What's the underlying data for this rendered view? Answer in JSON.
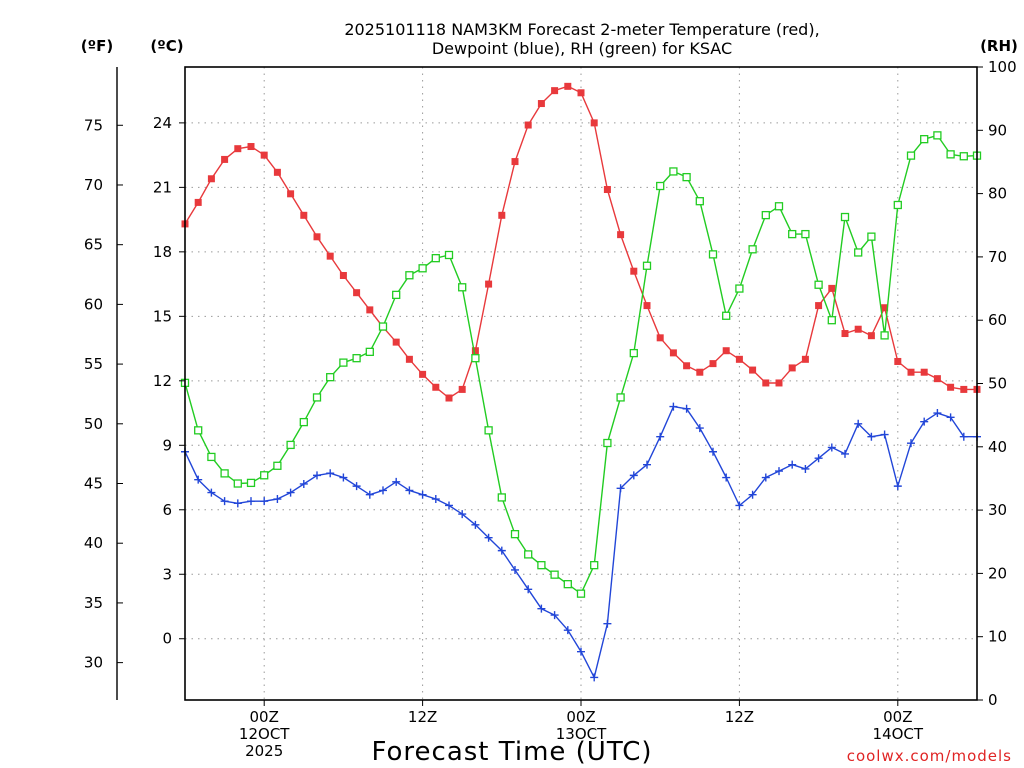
{
  "chart_data": {
    "type": "line",
    "title_lines": [
      "2025101118 NAM3KM Forecast 2-meter Temperature (red),",
      "Dewpoint (blue), RH (green) for KSAC"
    ],
    "xlabel": "Forecast Time (UTC)",
    "credit": "coolwx.com/models",
    "units": {
      "fahrenheit": "(ºF)",
      "celsius": "(ºC)",
      "rh": "(RH)"
    },
    "x_range": [
      1,
      61
    ],
    "x_ticks": [
      {
        "hour": 7,
        "lines": [
          "00Z",
          "12OCT",
          "2025"
        ]
      },
      {
        "hour": 19,
        "lines": [
          "12Z"
        ]
      },
      {
        "hour": 31,
        "lines": [
          "00Z",
          "13OCT"
        ]
      },
      {
        "hour": 43,
        "lines": [
          "12Z"
        ]
      },
      {
        "hour": 55,
        "lines": [
          "00Z",
          "14OCT"
        ]
      }
    ],
    "celsius_axis": {
      "range": [
        -2.85,
        26.6
      ],
      "ticks": [
        "0",
        "3",
        "6",
        "9",
        "12",
        "15",
        "18",
        "21",
        "24"
      ]
    },
    "fahrenheit_axis": {
      "ticks": [
        "30",
        "35",
        "40",
        "45",
        "50",
        "55",
        "60",
        "65",
        "70",
        "75"
      ]
    },
    "rh_axis": {
      "range": [
        0,
        100
      ],
      "ticks": [
        "0",
        "10",
        "20",
        "30",
        "40",
        "50",
        "60",
        "70",
        "80",
        "90",
        "100"
      ]
    },
    "series": [
      {
        "name": "2-meter Temperature",
        "unit": "C",
        "color": "#e8393c",
        "marker": "filled-square",
        "x": [
          1,
          2,
          3,
          4,
          5,
          6,
          7,
          8,
          9,
          10,
          11,
          12,
          13,
          14,
          15,
          16,
          17,
          18,
          19,
          20,
          21,
          22,
          23,
          24,
          25,
          26,
          27,
          28,
          29,
          30,
          31,
          32,
          33,
          34,
          35,
          36,
          37,
          38,
          39,
          40,
          41,
          42,
          43,
          44,
          45,
          46,
          47,
          48,
          49,
          50,
          51,
          52,
          53,
          54,
          55,
          56,
          57,
          58,
          59,
          60,
          61
        ],
        "values": [
          19.3,
          20.3,
          21.4,
          22.3,
          22.8,
          22.9,
          22.5,
          21.7,
          20.7,
          19.7,
          18.7,
          17.8,
          16.9,
          16.1,
          15.3,
          14.5,
          13.8,
          13.0,
          12.3,
          11.7,
          11.2,
          11.6,
          13.4,
          16.5,
          19.7,
          22.2,
          23.9,
          24.9,
          25.5,
          25.7,
          25.4,
          24.0,
          20.9,
          18.8,
          17.1,
          15.5,
          14.0,
          13.3,
          12.7,
          12.4,
          12.8,
          13.4,
          13.0,
          12.5,
          11.9,
          11.9,
          12.6,
          13.0,
          15.5,
          16.3,
          14.2,
          14.4,
          14.1,
          15.4,
          12.9,
          12.4,
          12.4,
          12.1,
          11.7,
          11.6,
          11.6
        ]
      },
      {
        "name": "Dewpoint",
        "unit": "C",
        "color": "#2246d8",
        "marker": "plus",
        "x": [
          1,
          2,
          3,
          4,
          5,
          6,
          7,
          8,
          9,
          10,
          11,
          12,
          13,
          14,
          15,
          16,
          17,
          18,
          19,
          20,
          21,
          22,
          23,
          24,
          25,
          26,
          27,
          28,
          29,
          30,
          31,
          32,
          33,
          34,
          35,
          36,
          37,
          38,
          39,
          40,
          41,
          42,
          43,
          44,
          45,
          46,
          47,
          48,
          49,
          50,
          51,
          52,
          53,
          54,
          55,
          56,
          57,
          58,
          59,
          60,
          61
        ],
        "values": [
          8.7,
          7.4,
          6.8,
          6.4,
          6.3,
          6.4,
          6.4,
          6.5,
          6.8,
          7.2,
          7.6,
          7.7,
          7.5,
          7.1,
          6.7,
          6.9,
          7.3,
          6.9,
          6.7,
          6.5,
          6.2,
          5.8,
          5.3,
          4.7,
          4.1,
          3.2,
          2.3,
          1.4,
          1.1,
          0.4,
          -0.6,
          -1.8,
          0.7,
          7.0,
          7.6,
          8.1,
          9.4,
          10.8,
          10.7,
          9.8,
          8.7,
          7.5,
          6.2,
          6.7,
          7.5,
          7.8,
          8.1,
          7.9,
          8.4,
          8.9,
          8.6,
          10.0,
          9.4,
          9.5,
          7.1,
          9.1,
          10.1,
          10.5,
          10.3,
          9.4,
          9.4
        ]
      },
      {
        "name": "RH",
        "unit": "%",
        "color": "#22cc22",
        "marker": "open-square",
        "x": [
          1,
          2,
          3,
          4,
          5,
          6,
          7,
          8,
          9,
          10,
          11,
          12,
          13,
          14,
          15,
          16,
          17,
          18,
          19,
          20,
          21,
          22,
          23,
          24,
          25,
          26,
          27,
          28,
          29,
          30,
          31,
          32,
          33,
          34,
          35,
          36,
          37,
          38,
          39,
          40,
          41,
          42,
          43,
          44,
          45,
          46,
          47,
          48,
          49,
          50,
          51,
          52,
          53,
          54,
          55,
          56,
          57,
          58,
          59,
          60,
          61
        ],
        "values": [
          50.1,
          42.6,
          38.4,
          35.8,
          34.2,
          34.3,
          35.5,
          37.0,
          40.3,
          43.9,
          47.8,
          51.0,
          53.3,
          54.0,
          55.0,
          59.0,
          64.0,
          67.1,
          68.2,
          69.8,
          70.3,
          65.2,
          54.0,
          42.6,
          32.0,
          26.2,
          23.0,
          21.3,
          19.8,
          18.3,
          16.8,
          21.3,
          40.6,
          47.8,
          54.8,
          68.6,
          81.2,
          83.5,
          82.6,
          78.8,
          70.4,
          60.7,
          65.0,
          71.2,
          76.6,
          78.0,
          73.6,
          73.6,
          65.6,
          60.0,
          76.3,
          70.7,
          73.2,
          57.6,
          78.2,
          86.0,
          88.6,
          89.2,
          86.2,
          85.9,
          86.0
        ]
      }
    ],
    "grid": true
  }
}
